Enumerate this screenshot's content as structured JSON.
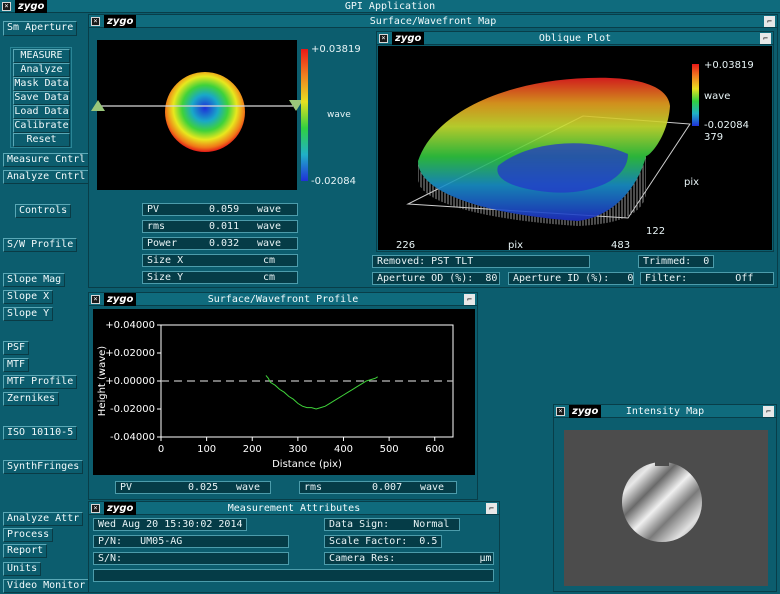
{
  "app": {
    "title": "GPI Application",
    "logo": "zygo"
  },
  "sidebar": {
    "sm_aperture": "Sm Aperture",
    "group": [
      "MEASURE",
      "Analyze",
      "Mask Data",
      "Save Data",
      "Load Data",
      "Calibrate",
      "Reset"
    ],
    "measure_cntrl": "Measure Cntrl",
    "analyze_cntrl": "Analyze Cntrl",
    "controls": "Controls",
    "sw_profile": "S/W Profile",
    "slope_mag": "Slope Mag",
    "slope_x": "Slope X",
    "slope_y": "Slope Y",
    "psf": "PSF",
    "mtf": "MTF",
    "mtf_profile": "MTF Profile",
    "zernikes": "Zernikes",
    "iso": "ISO 10110-5",
    "synth": "SynthFringes",
    "analyze_attr": "Analyze Attr",
    "process": "Process",
    "report": "Report",
    "units": "Units",
    "video_monitor": "Video Monitor"
  },
  "surface_map": {
    "title": "Surface/Wavefront Map",
    "scale_max": "+0.03819",
    "scale_unit": "wave",
    "scale_min": "-0.02084",
    "rows": [
      {
        "label": "PV",
        "value": "0.059",
        "unit": "wave"
      },
      {
        "label": "rms",
        "value": "0.011",
        "unit": "wave"
      },
      {
        "label": "Power",
        "value": "0.032",
        "unit": "wave"
      },
      {
        "label": "Size X",
        "value": "",
        "unit": "cm"
      },
      {
        "label": "Size Y",
        "value": "",
        "unit": "cm"
      }
    ]
  },
  "oblique": {
    "title": "Oblique Plot",
    "scale_max": "+0.03819",
    "scale_unit": "wave",
    "scale_min": "-0.02084",
    "y_max": "379",
    "y_label": "pix",
    "y_min": "122",
    "x_min": "226",
    "x_label": "pix",
    "x_max": "483",
    "removed": "Removed: PST TLT",
    "trimmed": "Trimmed:  0",
    "aperture_od": "Aperture OD (%):  80",
    "aperture_id": "Aperture ID (%):   0",
    "filter": "Filter:        Off"
  },
  "profile": {
    "title": "Surface/Wavefront Profile",
    "xlabel": "Distance (pix)",
    "ylabel": "Height (wave)",
    "pv": {
      "label": "PV",
      "value": "0.025",
      "unit": "wave"
    },
    "rms": {
      "label": "rms",
      "value": "0.007",
      "unit": "wave"
    }
  },
  "chart_data": {
    "type": "line",
    "title": "",
    "xlabel": "Distance (pix)",
    "ylabel": "Height (wave)",
    "xlim": [
      0,
      640
    ],
    "ylim": [
      -0.04,
      0.04
    ],
    "xticks": [
      "0",
      "100",
      "200",
      "300",
      "400",
      "500",
      "600"
    ],
    "yticks": [
      "+0.04000",
      "+0.02000",
      "+0.00000",
      "-0.02000",
      "-0.04000"
    ],
    "series": [
      {
        "x": [
          230,
          235,
          240,
          250,
          260,
          270,
          280,
          290,
          300,
          310,
          320,
          330,
          340,
          350,
          360,
          370,
          380,
          390,
          400,
          410,
          420,
          430,
          440,
          450,
          460,
          470,
          475
        ],
        "y": [
          0.004,
          0.002,
          -0.001,
          -0.003,
          -0.006,
          -0.008,
          -0.011,
          -0.013,
          -0.016,
          -0.018,
          -0.019,
          -0.019,
          -0.02,
          -0.019,
          -0.018,
          -0.016,
          -0.014,
          -0.012,
          -0.01,
          -0.008,
          -0.006,
          -0.004,
          -0.002,
          0.0,
          0.001,
          0.002,
          0.003
        ]
      }
    ],
    "reference_line": 0
  },
  "attributes": {
    "title": "Measurement Attributes",
    "date": "Wed Aug 20 15:30:02 2014",
    "pn": "P/N:   UM05-AG",
    "sn": "S/N:",
    "data_sign": "Data Sign:    Normal",
    "scale_factor": "Scale Factor:  0.5",
    "camera_res": "Camera Res:              µm"
  },
  "intensity": {
    "title": "Intensity Map"
  }
}
